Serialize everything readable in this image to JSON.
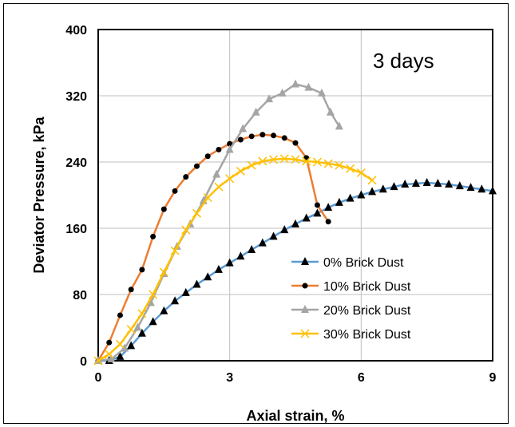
{
  "chart_data": {
    "type": "line",
    "annotation": "3 days",
    "xlabel": "Axial strain, %",
    "ylabel": "Deviator Pressure, kPa",
    "xlim": [
      0,
      9
    ],
    "ylim": [
      0,
      400
    ],
    "xticks": [
      0,
      3,
      6,
      9
    ],
    "yticks": [
      0,
      80,
      160,
      240,
      320,
      400
    ],
    "grid": true,
    "legend_position": "lower-right",
    "series": [
      {
        "name": "0% Brick Dust",
        "line_color": "#5b9bd5",
        "marker_color": "#000000",
        "marker": "triangle",
        "x": [
          0,
          0.25,
          0.5,
          0.75,
          1.0,
          1.25,
          1.5,
          1.75,
          2.0,
          2.25,
          2.5,
          2.75,
          3.0,
          3.25,
          3.5,
          3.75,
          4.0,
          4.25,
          4.5,
          4.75,
          5.0,
          5.25,
          5.5,
          5.75,
          6.0,
          6.25,
          6.5,
          6.75,
          7.0,
          7.25,
          7.5,
          7.75,
          8.0,
          8.25,
          8.5,
          8.75,
          9.0
        ],
        "y": [
          0,
          0,
          5,
          18,
          33,
          47,
          60,
          72,
          82,
          92,
          101,
          110,
          118,
          126,
          134,
          142,
          150,
          158,
          165,
          172,
          178,
          185,
          191,
          196,
          200,
          204,
          207,
          210,
          213,
          214,
          215,
          214,
          213,
          211,
          209,
          207,
          205
        ]
      },
      {
        "name": "10% Brick Dust",
        "line_color": "#ed7d31",
        "marker_color": "#000000",
        "marker": "circle",
        "x": [
          0,
          0.25,
          0.5,
          0.75,
          1.0,
          1.25,
          1.5,
          1.75,
          2.0,
          2.25,
          2.5,
          2.75,
          3.0,
          3.25,
          3.5,
          3.75,
          4.0,
          4.25,
          4.5,
          4.75,
          5.0,
          5.25
        ],
        "y": [
          0,
          22,
          55,
          86,
          110,
          150,
          183,
          205,
          222,
          235,
          247,
          255,
          262,
          267,
          271,
          273,
          272,
          269,
          263,
          245,
          188,
          168
        ]
      },
      {
        "name": "20% Brick Dust",
        "line_color": "#a5a5a5",
        "marker_color": "#a5a5a5",
        "marker": "triangle",
        "x": [
          0,
          0.3,
          0.6,
          0.9,
          1.2,
          1.5,
          1.8,
          2.1,
          2.4,
          2.7,
          3.0,
          3.3,
          3.6,
          3.9,
          4.2,
          4.5,
          4.8,
          5.1,
          5.3,
          5.5
        ],
        "y": [
          0,
          2,
          15,
          40,
          70,
          105,
          138,
          165,
          193,
          225,
          255,
          280,
          300,
          316,
          323,
          334,
          330,
          323,
          300,
          283
        ]
      },
      {
        "name": "30% Brick Dust",
        "line_color": "#ffc000",
        "marker_color": "#ffc000",
        "marker": "x",
        "x": [
          0,
          0.25,
          0.5,
          0.75,
          1.0,
          1.25,
          1.5,
          1.75,
          2.0,
          2.25,
          2.5,
          2.75,
          3.0,
          3.25,
          3.5,
          3.75,
          4.0,
          4.25,
          4.5,
          4.75,
          5.0,
          5.25,
          5.5,
          5.75,
          6.0,
          6.25
        ],
        "y": [
          0,
          8,
          20,
          38,
          57,
          80,
          107,
          133,
          158,
          178,
          197,
          210,
          220,
          229,
          236,
          241,
          243,
          244,
          243,
          241,
          240,
          238,
          236,
          232,
          227,
          218
        ]
      }
    ]
  }
}
